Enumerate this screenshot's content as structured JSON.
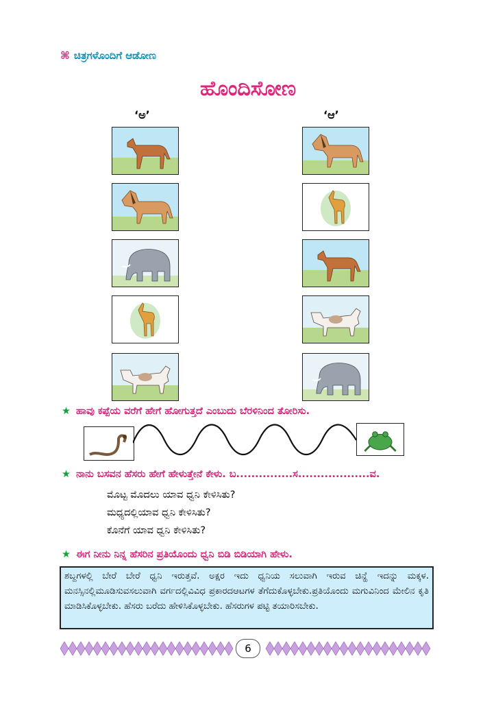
{
  "section": {
    "symbol": "⌘",
    "label": "ಚಿತ್ರಗಳೊಂದಿಗೆ ಆಡೋಣ"
  },
  "title": "ಹೊಂದಿಸೋಣ",
  "matching": {
    "left_label": "‘ಅ’",
    "right_label": "‘ಆ’",
    "left_items": [
      "dog",
      "horse",
      "elephant",
      "deer",
      "cow"
    ],
    "right_items": [
      "horse",
      "deer",
      "dog",
      "cow",
      "elephant"
    ]
  },
  "snake_task": {
    "instruction": "ಹಾವು ಕಪ್ಪೆಯ ವರೆಗೆ ಹೇಗೆ ಹೋಗುತ್ತದೆ ಎಂಬುದು ಬೆರಳಿನಿಂದ ತೋರಿಸು.",
    "start_image": "snake",
    "end_image": "frog"
  },
  "name_task": {
    "instruction": "ನಾನು ಬಸವನ ಹೆಸರು ಹೇಗೆ ಹೇಳುತ್ತೇನೆ ಕೇಳು. ಬ...............ಸ...................ವ.",
    "questions": [
      "ಮೊಟ್ಟ ಮೊದಲು ಯಾವ ಧ್ವನಿ ಕೇಳಿಸಿತು?",
      "ಮಧ್ಯದಲ್ಲಿಯಾವ ಧ್ವನಿ ಕೇಳಿಸಿತು?",
      "ಕೊನೆಗೆ ಯಾವ ಧ್ವನಿ ಕೇಳಿಸಿತು?"
    ]
  },
  "own_name_task": {
    "instruction": "ಈಗ ನೀನು ನಿನ್ನ ಹೆಸರಿನ ಪ್ರತಿಯೊಂದು ಧ್ವನಿ ಬಿಡಿ ಬಿಡಿಯಾಗಿ ಹೇಳು."
  },
  "teacher_note": "ಶಬ್ದಗಳಲ್ಲಿ ಬೇರೆ ಬೇರೆ ಧ್ವನಿ ಇರುತ್ತವೆ. ಅಕ್ಷರ ಇದು ಧ್ವನಿಯ ಸಲುವಾಗಿ ಇರುವ ಚಿನ್ಹೆ ಇದನ್ನು ಮಕ್ಕಳ. ಮನಸ್ಸಿನಲ್ಲಿಮೂಡಿಸುವಸಲುವಾಗಿ ವರ್ಗದಲ್ಲಿವಿವಿಧ ಪ್ರಕಾರದಆಟಗಳ ತೆಗೆದುಕೊಳ್ಳಬೇಕು.ಪ್ರತಿಯೊಂದು ಮಗುವಿನಿಂದ ಮೇಲಿನ ಕೃತಿ ಮಾಡಿಸಿಕೊಳ್ಳಬೇಕು. ಹೆಸರು ಬರೆದು ಹೇಳಿಸಿಕೊಳ್ಳಬೇಕು. ಹೆಸರುಗಳ ಪಟ್ಟಿ ತಯಾರಿಸಬೇಕು.",
  "page_number": "6",
  "colors": {
    "accent_pink": "#e0247a",
    "accent_cyan": "#0a8fb0",
    "star_green": "#13a13a",
    "note_bg": "#cfeefb",
    "footer_purple": "#c9a0e0"
  }
}
